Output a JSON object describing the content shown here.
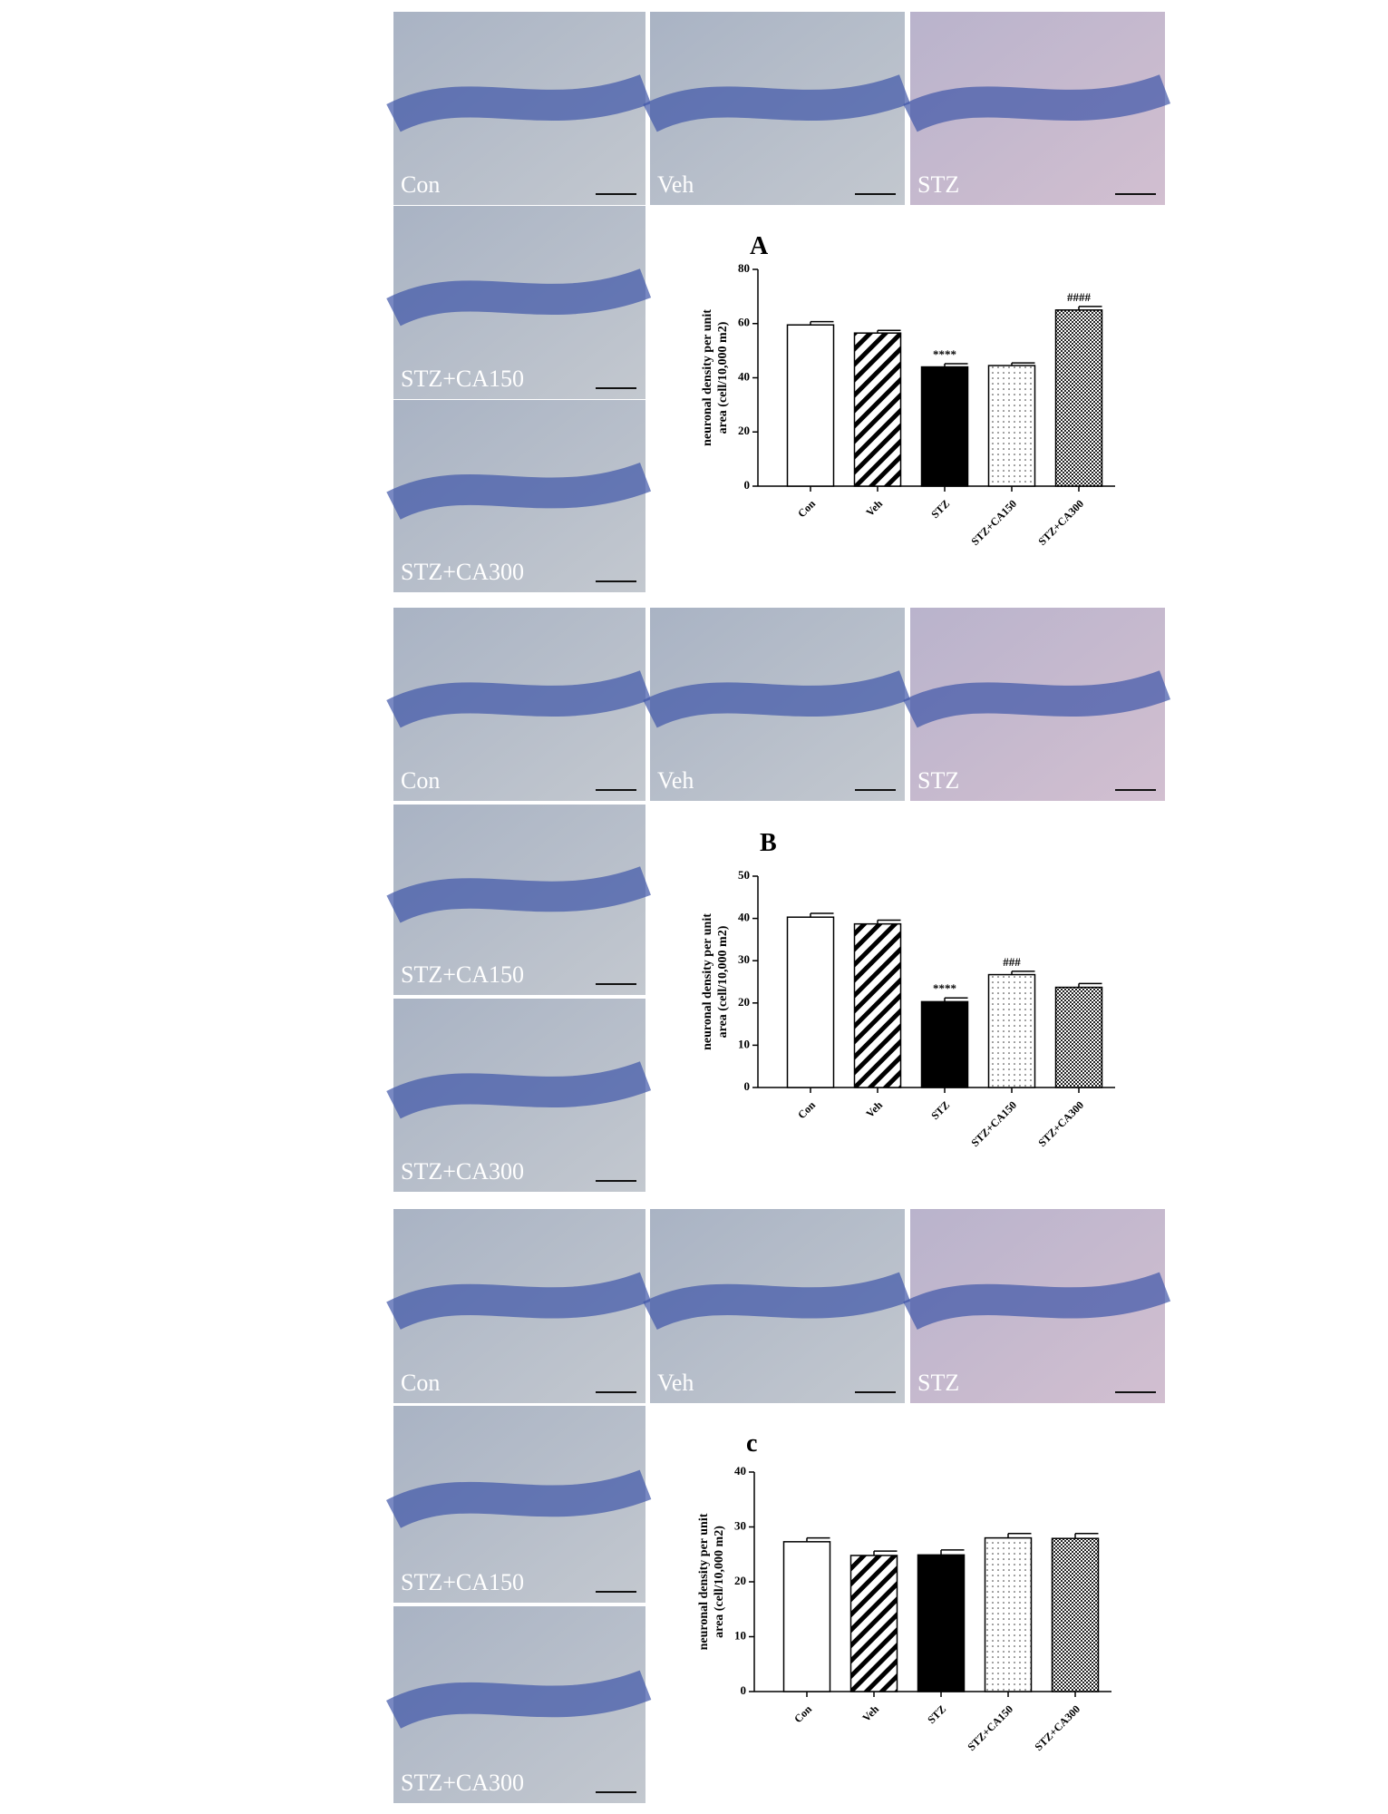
{
  "micrograph_labels": [
    [
      "Con",
      "Veh",
      "STZ",
      "STZ+CA150",
      "STZ+CA300"
    ],
    [
      "Con",
      "Veh",
      "STZ",
      "STZ+CA150",
      "STZ+CA300"
    ],
    [
      "Con",
      "Veh",
      "STZ",
      "STZ+CA150",
      "STZ+CA300"
    ]
  ],
  "chart_data": [
    {
      "type": "bar",
      "title": "A",
      "y_label": [
        "neuronal density per unit",
        "area (cell/10,000  m2)"
      ],
      "categories": [
        "Con",
        "Veh",
        "STZ",
        "STZ+CA150",
        "STZ+CA300"
      ],
      "values": [
        59.5,
        56.5,
        44,
        44.5,
        65
      ],
      "errors": [
        1.2,
        1,
        1.2,
        1,
        1.3
      ],
      "annotations": [
        null,
        null,
        "****",
        null,
        "####"
      ],
      "fills": [
        "white",
        "hatch",
        "black",
        "dots",
        "checker"
      ],
      "ylim": [
        0,
        80
      ],
      "yticks": [
        0,
        20,
        40,
        60,
        80
      ]
    },
    {
      "type": "bar",
      "title": "B",
      "y_label": [
        "neuronal density per unit",
        "area (cell/10,000  m2)"
      ],
      "categories": [
        "Con",
        "Veh",
        "STZ",
        "STZ+CA150",
        "STZ+CA300"
      ],
      "values": [
        40.3,
        38.7,
        20.3,
        26.7,
        23.7
      ],
      "errors": [
        0.9,
        0.9,
        0.9,
        0.8,
        0.9
      ],
      "annotations": [
        null,
        null,
        "****",
        "###",
        null
      ],
      "fills": [
        "white",
        "hatch",
        "black",
        "dots",
        "checker"
      ],
      "ylim": [
        0,
        50
      ],
      "yticks": [
        0,
        10,
        20,
        30,
        40,
        50
      ]
    },
    {
      "type": "bar",
      "title": "c",
      "y_label": [
        "neuronal density per unit",
        "area (cell/10,000  m2)"
      ],
      "categories": [
        "Con",
        "Veh",
        "STZ",
        "STZ+CA150",
        "STZ+CA300"
      ],
      "values": [
        27.3,
        24.8,
        24.9,
        28,
        27.9
      ],
      "errors": [
        0.7,
        0.8,
        0.9,
        0.8,
        0.9
      ],
      "annotations": [
        null,
        null,
        null,
        null,
        null
      ],
      "fills": [
        "white",
        "hatch",
        "black",
        "dots",
        "checker"
      ],
      "ylim": [
        0,
        40
      ],
      "yticks": [
        0,
        10,
        20,
        30,
        40
      ]
    }
  ]
}
